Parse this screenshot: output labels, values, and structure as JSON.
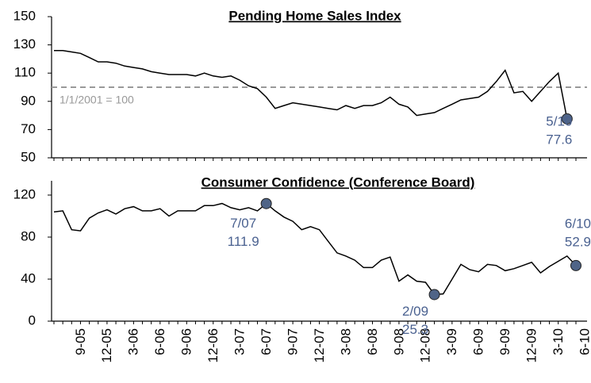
{
  "chart_data": [
    {
      "type": "line",
      "title": "Pending Home Sales Index",
      "values": [
        126,
        126,
        125,
        124,
        121,
        118,
        118,
        117,
        115,
        114,
        113,
        111,
        110,
        109,
        109,
        109,
        108,
        110,
        108,
        107,
        108,
        105,
        101,
        99,
        93,
        85,
        87,
        89,
        88,
        87,
        86,
        85,
        84,
        87,
        85,
        87,
        87,
        89,
        93,
        88,
        86,
        80,
        81,
        82,
        85,
        88,
        91,
        92,
        93,
        97,
        104,
        112,
        96,
        97,
        90,
        97,
        104,
        110,
        77.6
      ],
      "color": "#000000",
      "ylim": [
        50,
        150
      ],
      "yticks": [
        50,
        70,
        90,
        110,
        130,
        150
      ],
      "reference_line": {
        "value": 100,
        "label": "1/1/2001 = 100",
        "color": "#999999"
      },
      "callouts": [
        {
          "text": "5/10",
          "value": 77.6
        }
      ],
      "marker_color": "#4f6487",
      "callout_color": "#4a6190"
    },
    {
      "type": "line",
      "title": "Consumer Confidence (Conference Board)",
      "categories": [
        null,
        null,
        "9-05",
        null,
        null,
        "12-05",
        null,
        null,
        "3-06",
        null,
        null,
        "6-06",
        null,
        null,
        "9-06",
        null,
        null,
        "12-06",
        null,
        null,
        "3-07",
        null,
        null,
        "6-07",
        null,
        null,
        "9-07",
        null,
        null,
        "12-07",
        null,
        null,
        "3-08",
        null,
        null,
        "6-08",
        null,
        null,
        "9-08",
        null,
        null,
        "12-08",
        null,
        null,
        "3-09",
        null,
        null,
        "6-09",
        null,
        null,
        "9-09",
        null,
        null,
        "12-09",
        null,
        null,
        "3-10",
        null,
        null,
        "6-10"
      ],
      "values": [
        104,
        105,
        87,
        86,
        98,
        103,
        106,
        102,
        107,
        109,
        105,
        105,
        107,
        100,
        105,
        105,
        105,
        110,
        110,
        112,
        108,
        106,
        108,
        105,
        111.9,
        105,
        99,
        95,
        87,
        90,
        87,
        76,
        65,
        62,
        58,
        51,
        51,
        58,
        61,
        38,
        44,
        38,
        37,
        25.3,
        26,
        40,
        54,
        49,
        47,
        54,
        53,
        48,
        50,
        53,
        56,
        46,
        52,
        57,
        62,
        52.9
      ],
      "color": "#000000",
      "ylim": [
        0,
        120
      ],
      "yticks": [
        0,
        40,
        80,
        120
      ],
      "callouts": [
        {
          "text": "7/07",
          "value": 111.9
        },
        {
          "text": "2/09",
          "value": 25.3
        },
        {
          "text": "6/10",
          "value": 52.9
        }
      ],
      "marker_color": "#4f6487",
      "callout_color": "#4a6190"
    }
  ]
}
